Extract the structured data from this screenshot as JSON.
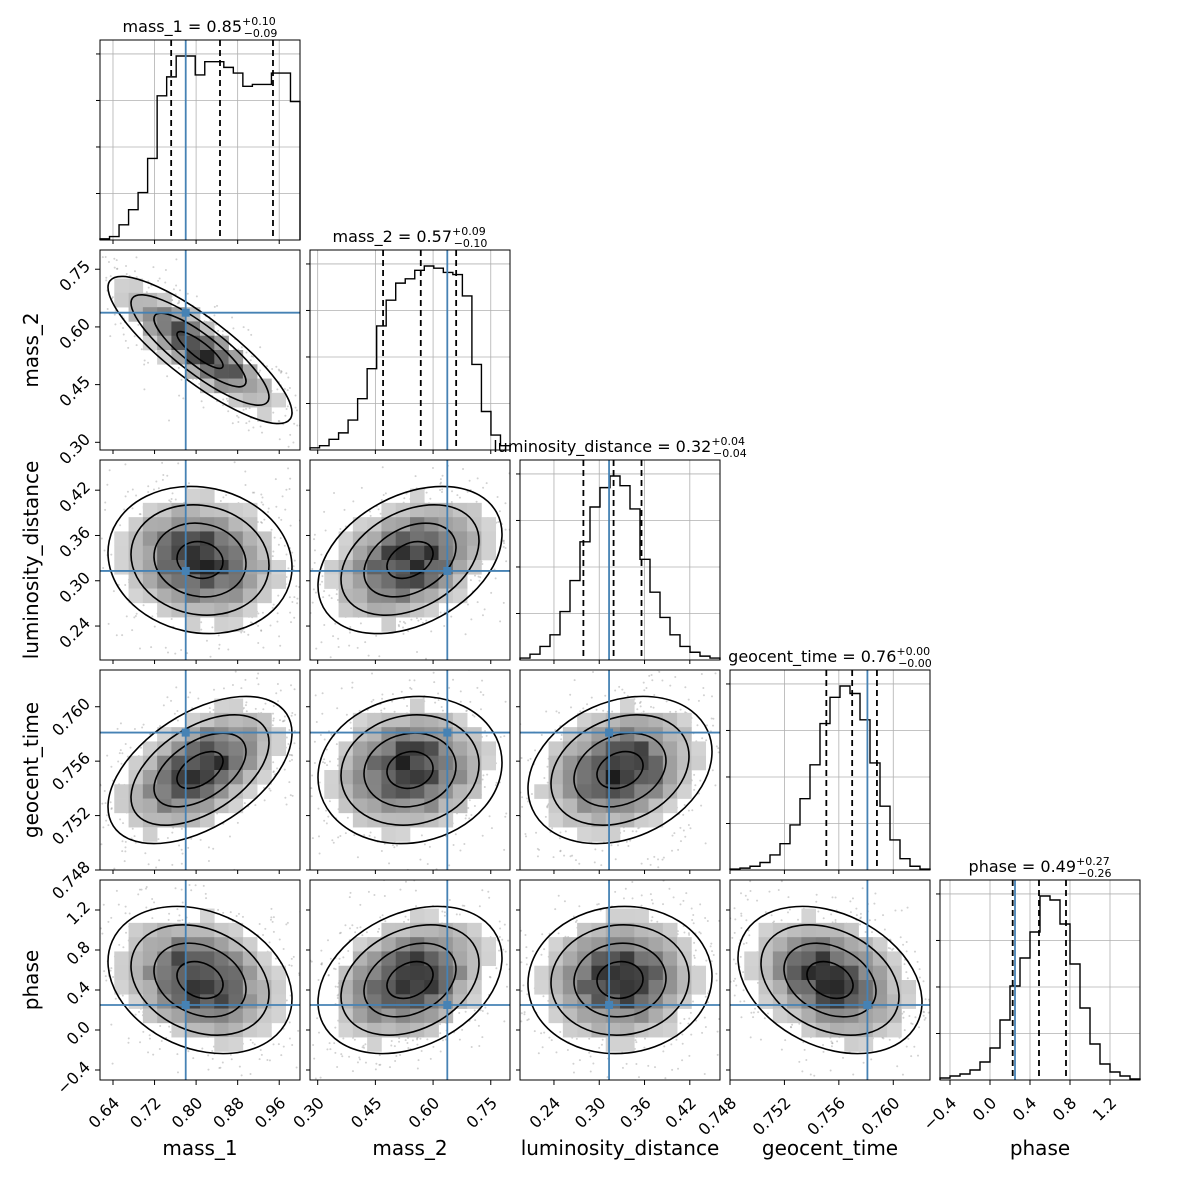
{
  "chart_data": {
    "type": "corner",
    "parameters": [
      {
        "label": "mass_1",
        "range": [
          0.615,
          1.0
        ],
        "ticks": [
          "0.64",
          "0.72",
          "0.80",
          "0.88",
          "0.96"
        ],
        "tick_values": [
          0.64,
          0.72,
          0.8,
          0.88,
          0.96
        ],
        "truth": 0.78,
        "title": {
          "prefix": "mass_1 = 0.85",
          "sup": "+0.10",
          "sub": "−0.09"
        },
        "quantiles": [
          0.752,
          0.846,
          0.948
        ],
        "hist": [
          0.6,
          1.8,
          8,
          16,
          25,
          43,
          76,
          86,
          97,
          97,
          87,
          94,
          94,
          91,
          88,
          81,
          82,
          82,
          88,
          88,
          73
        ]
      },
      {
        "label": "mass_2",
        "range": [
          0.28,
          0.8
        ],
        "ticks": [
          "0.30",
          "0.45",
          "0.60",
          "0.75"
        ],
        "tick_values": [
          0.3,
          0.45,
          0.6,
          0.75
        ],
        "truth": 0.637,
        "title": {
          "prefix": "mass_2 = 0.57",
          "sup": "+0.09",
          "sub": "−0.10"
        },
        "quantiles": [
          0.47,
          0.568,
          0.66
        ],
        "hist": [
          1,
          2,
          5,
          8,
          14,
          24,
          38,
          58,
          70,
          78,
          80,
          84,
          86,
          85,
          83,
          82,
          72,
          40,
          18,
          7,
          2
        ]
      },
      {
        "label": "luminosity_distance",
        "range": [
          0.195,
          0.46
        ],
        "ticks": [
          "0.24",
          "0.30",
          "0.36",
          "0.42"
        ],
        "tick_values": [
          0.24,
          0.3,
          0.36,
          0.42
        ],
        "truth": 0.313,
        "title": {
          "prefix": "luminosity_distance = 0.32",
          "sup": "+0.04",
          "sub": "−0.04"
        },
        "quantiles": [
          0.279,
          0.319,
          0.356
        ],
        "hist": [
          1,
          3,
          7,
          13,
          25,
          41,
          61,
          79,
          89,
          95,
          90,
          78,
          52,
          35,
          22,
          13,
          7,
          4,
          2,
          1
        ]
      },
      {
        "label": "geocent_time",
        "range": [
          0.748,
          0.7627
        ],
        "ticks": [
          "0.748",
          "0.752",
          "0.756",
          "0.760"
        ],
        "tick_values": [
          0.748,
          0.752,
          0.756,
          0.76
        ],
        "truth": 0.7581,
        "title": {
          "prefix": "geocent_time = 0.76",
          "sup": "+0.00",
          "sub": "−0.00"
        },
        "quantiles": [
          0.75508,
          0.75698,
          0.7588
        ],
        "hist": [
          0.5,
          1,
          2,
          4,
          8,
          14,
          24,
          38,
          56,
          78,
          92,
          98,
          94,
          80,
          57,
          34,
          16,
          6,
          2,
          0.5
        ]
      },
      {
        "label": "phase",
        "range": [
          -0.5,
          1.5
        ],
        "ticks": [
          "−0.4",
          "0.0",
          "0.4",
          "0.8",
          "1.2"
        ],
        "tick_values": [
          -0.4,
          0.0,
          0.4,
          0.8,
          1.2
        ],
        "truth": 0.25,
        "title": {
          "prefix": "phase = 0.49",
          "sup": "+0.27",
          "sub": "−0.26"
        },
        "quantiles": [
          0.227,
          0.49,
          0.76
        ],
        "hist": [
          1,
          2,
          3,
          5,
          9,
          16,
          30,
          47,
          61,
          74,
          92,
          90,
          78,
          58,
          36,
          18,
          8,
          4,
          2,
          0.5
        ]
      }
    ],
    "truths_color": "#4682b4",
    "hist_color": "#000000",
    "quantile_style": "dashed",
    "contour_levels": [
      "0.5-sigma",
      "1-sigma",
      "1.5-sigma",
      "2-sigma"
    ],
    "correlations": {
      "1,0": -0.85,
      "2,0": -0.1,
      "2,1": 0.35,
      "3,0": 0.5,
      "3,1": 0.1,
      "3,2": 0.25,
      "4,0": -0.25,
      "4,1": 0.3,
      "4,2": 0.05,
      "4,3": -0.3
    },
    "grid": true
  }
}
